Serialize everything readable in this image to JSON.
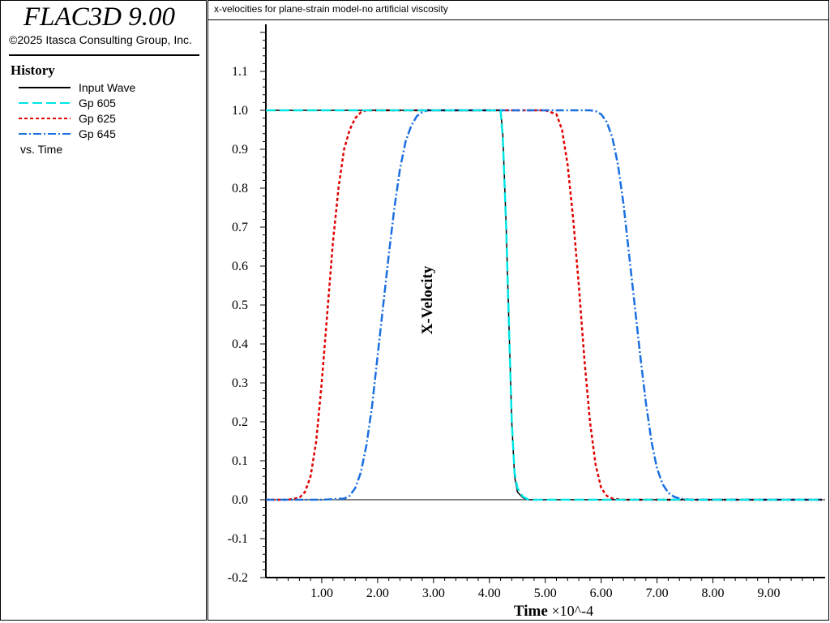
{
  "app": {
    "title": "FLAC3D 9.00",
    "copyright": "©2025 Itasca Consulting Group, Inc."
  },
  "legend": {
    "heading": "History",
    "items": [
      {
        "label": "Input Wave",
        "color": "#000000",
        "dash": "solid"
      },
      {
        "label": "Gp 605",
        "color": "#00e5e5",
        "dash": "long-dash"
      },
      {
        "label": "Gp 625",
        "color": "#e00000",
        "dash": "short-dash"
      },
      {
        "label": "Gp 645",
        "color": "#1a6fe0",
        "dash": "dash-dot"
      }
    ],
    "footer": "vs. Time"
  },
  "chart_data": {
    "type": "line",
    "title": "x-velocities for plane-strain model-no artificial viscosity",
    "xlabel": "Time",
    "xlabel_suffix": "×10^-4",
    "ylabel": "X-Velocity",
    "xlim": [
      0,
      9.95
    ],
    "ylim": [
      -0.2,
      1.2
    ],
    "xticks": [
      1,
      2,
      3,
      4,
      5,
      6,
      7,
      8,
      9
    ],
    "xtick_labels": [
      "1.00",
      "2.00",
      "3.00",
      "4.00",
      "5.00",
      "6.00",
      "7.00",
      "8.00",
      "9.00"
    ],
    "yticks": [
      -0.2,
      -0.1,
      0.0,
      0.1,
      0.2,
      0.3,
      0.4,
      0.5,
      0.6,
      0.7,
      0.8,
      0.9,
      1.0,
      1.1
    ],
    "ytick_labels": [
      "-0.2",
      "-0.1",
      "0.0",
      "0.1",
      "0.2",
      "0.3",
      "0.4",
      "0.5",
      "0.6",
      "0.7",
      "0.8",
      "0.9",
      "1.0",
      "1.1"
    ],
    "grid": false,
    "series": [
      {
        "name": "Input Wave",
        "color": "#000000",
        "dash": "solid",
        "x": [
          0.0,
          4.2,
          4.24,
          4.3,
          4.35,
          4.4,
          4.45,
          4.5,
          4.6,
          4.7,
          9.95
        ],
        "y": [
          1.0,
          1.0,
          0.94,
          0.7,
          0.45,
          0.2,
          0.06,
          0.02,
          0.005,
          0.0,
          0.0
        ]
      },
      {
        "name": "Gp 605",
        "color": "#00e5e5",
        "dash": "long-dash",
        "x": [
          0.0,
          4.2,
          4.24,
          4.3,
          4.35,
          4.4,
          4.45,
          4.5,
          4.6,
          4.7,
          4.8,
          9.95
        ],
        "y": [
          1.0,
          1.0,
          0.93,
          0.7,
          0.45,
          0.2,
          0.07,
          0.03,
          0.008,
          0.0,
          0.0,
          0.0
        ]
      },
      {
        "name": "Gp 625",
        "color": "#e00000",
        "dash": "short-dash",
        "x": [
          0.0,
          0.4,
          0.6,
          0.7,
          0.8,
          0.9,
          1.0,
          1.1,
          1.2,
          1.3,
          1.4,
          1.5,
          1.6,
          1.7,
          1.8,
          1.9,
          2.0,
          2.5,
          3.0,
          3.5,
          4.0,
          4.5,
          5.0,
          5.2,
          5.3,
          5.4,
          5.5,
          5.6,
          5.7,
          5.8,
          5.9,
          6.0,
          6.1,
          6.2,
          6.4,
          6.6,
          7.0,
          9.95
        ],
        "y": [
          0.0,
          0.0,
          0.005,
          0.02,
          0.06,
          0.15,
          0.3,
          0.48,
          0.66,
          0.8,
          0.9,
          0.95,
          0.98,
          0.995,
          1.0,
          1.0,
          1.0,
          1.0,
          1.0,
          1.0,
          1.0,
          1.0,
          1.0,
          0.99,
          0.95,
          0.86,
          0.72,
          0.55,
          0.36,
          0.2,
          0.09,
          0.03,
          0.01,
          0.003,
          0.0,
          0.0,
          0.0,
          0.0
        ]
      },
      {
        "name": "Gp 645",
        "color": "#1a6fe0",
        "dash": "dash-dot",
        "x": [
          0.0,
          1.0,
          1.4,
          1.5,
          1.6,
          1.7,
          1.8,
          1.9,
          2.0,
          2.1,
          2.2,
          2.3,
          2.4,
          2.5,
          2.6,
          2.7,
          2.8,
          2.9,
          3.0,
          3.5,
          4.0,
          5.0,
          5.5,
          5.8,
          5.9,
          6.0,
          6.1,
          6.2,
          6.3,
          6.4,
          6.5,
          6.6,
          6.7,
          6.8,
          6.9,
          7.0,
          7.1,
          7.2,
          7.3,
          7.4,
          7.6,
          8.0,
          9.95
        ],
        "y": [
          0.0,
          0.0,
          0.003,
          0.01,
          0.03,
          0.07,
          0.14,
          0.24,
          0.37,
          0.5,
          0.63,
          0.75,
          0.85,
          0.92,
          0.96,
          0.985,
          0.995,
          1.0,
          1.0,
          1.0,
          1.0,
          1.0,
          1.0,
          1.0,
          0.998,
          0.99,
          0.97,
          0.93,
          0.86,
          0.76,
          0.63,
          0.5,
          0.37,
          0.25,
          0.15,
          0.08,
          0.04,
          0.018,
          0.008,
          0.003,
          0.0,
          0.0,
          0.0
        ]
      }
    ]
  }
}
